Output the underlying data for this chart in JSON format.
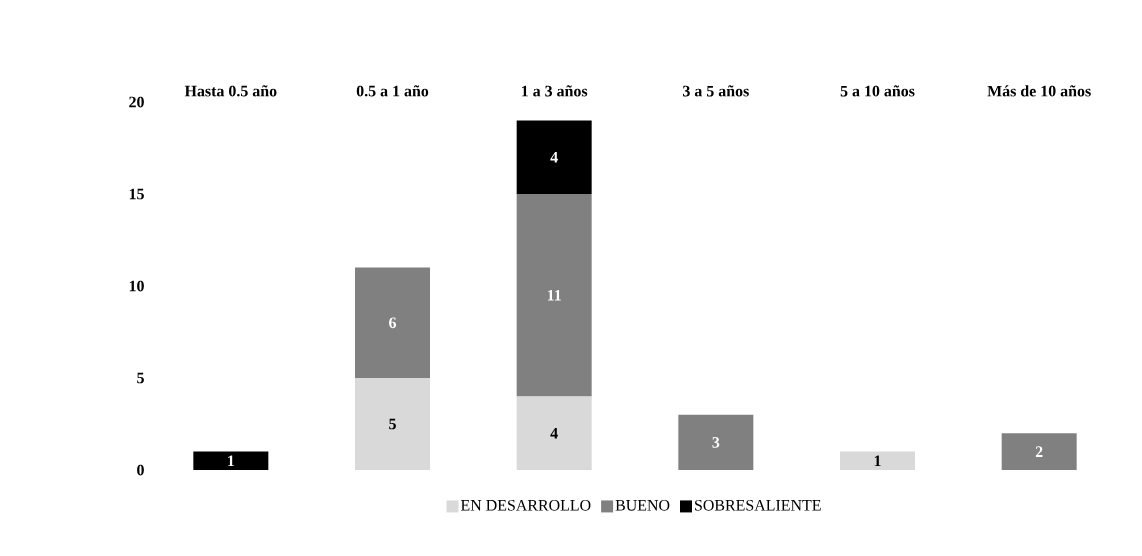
{
  "chart_data": {
    "type": "bar",
    "stacked": true,
    "categories": [
      "Hasta 0.5 año",
      "0.5 a 1 año",
      "1 a 3 años",
      "3 a 5 años",
      "5 a 10 años",
      "Más de 10 años"
    ],
    "series": [
      {
        "name": "EN DESARROLLO",
        "color": "#d9d9d9",
        "values": [
          null,
          5,
          4,
          null,
          1,
          null
        ]
      },
      {
        "name": "BUENO",
        "color": "#808080",
        "values": [
          null,
          6,
          11,
          3,
          null,
          2
        ]
      },
      {
        "name": "SOBRESALIENTE",
        "color": "#000000",
        "values": [
          1,
          null,
          4,
          null,
          null,
          null
        ]
      }
    ],
    "ylim": [
      0,
      20
    ],
    "yticks": [
      0,
      5,
      10,
      15,
      20
    ],
    "grid": false,
    "legend": "bottom",
    "data_labels": true
  }
}
